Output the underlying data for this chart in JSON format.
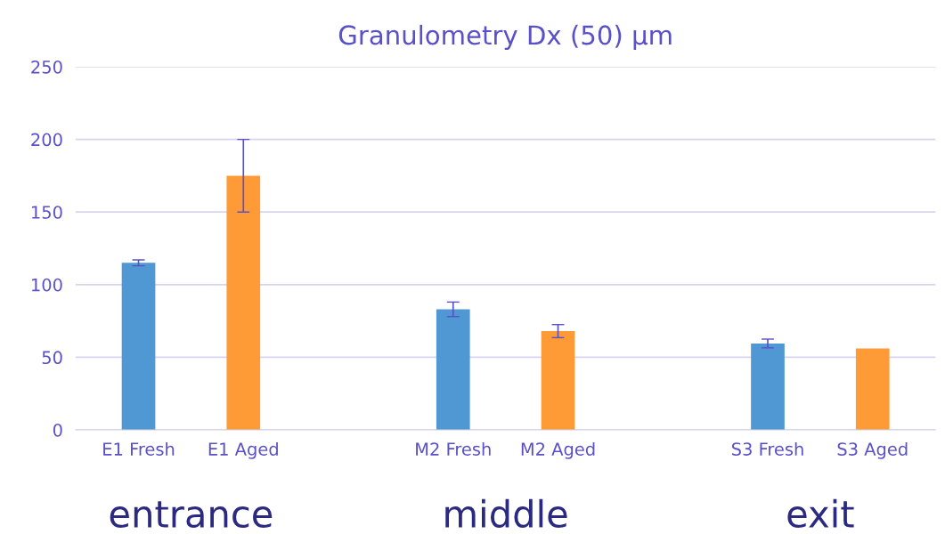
{
  "chart_data": {
    "type": "bar",
    "title": "Granulometry Dx (50) µm",
    "categories": [
      "E1 Fresh",
      "E1 Aged",
      null,
      "M2 Fresh",
      "M2 Aged",
      null,
      "S3 Fresh",
      "S3 Aged"
    ],
    "values": [
      115,
      175,
      null,
      83,
      68,
      null,
      59.5,
      56
    ],
    "colors": [
      "#5098d4",
      "#ff9b37",
      null,
      "#5098d4",
      "#ff9b37",
      null,
      "#5098d4",
      "#ff9b37"
    ],
    "errors": [
      2,
      25,
      null,
      5,
      4.5,
      null,
      3,
      null
    ],
    "ylim": [
      0,
      250
    ],
    "yticks": [
      0,
      50,
      100,
      150,
      200,
      250
    ],
    "grid": "y",
    "annotations": [
      "entrance",
      "middle",
      "exit"
    ]
  }
}
